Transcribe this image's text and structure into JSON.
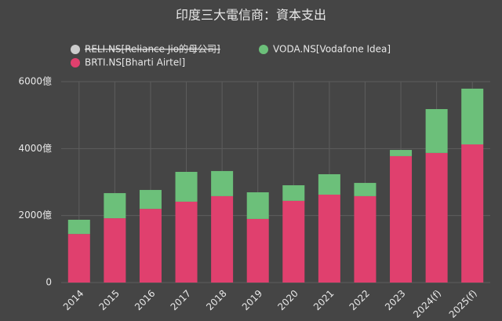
{
  "chart_data": {
    "type": "stacked_bar",
    "title": "印度三大電信商：資本支出",
    "categories": [
      "2014",
      "2015",
      "2016",
      "2017",
      "2018",
      "2019",
      "2020",
      "2021",
      "2022",
      "2023",
      "2024(f)",
      "2025(f)"
    ],
    "series": [
      {
        "name": "RELI.NS[Reliance Jio的母公司]",
        "color": "#cccccc",
        "hidden": true,
        "values": [
          null,
          null,
          null,
          null,
          null,
          null,
          null,
          null,
          null,
          null,
          null,
          null
        ]
      },
      {
        "name": "VODA.NS[Vodafone Idea]",
        "color": "#6cc07a",
        "values": [
          425,
          750,
          565,
          890,
          750,
          795,
          465,
          610,
          395,
          185,
          1310,
          1665
        ]
      },
      {
        "name": "BRTI.NS[Bharti Airtel]",
        "color": "#e0406e",
        "values": [
          1450,
          1920,
          2200,
          2415,
          2580,
          1900,
          2440,
          2625,
          2580,
          3775,
          3870,
          4125
        ]
      }
    ],
    "ylim": [
      0,
      6000
    ],
    "yticks": [
      0,
      {
        "value": 2000,
        "label": "2000億"
      },
      {
        "value": 4000,
        "label": "4000億"
      },
      {
        "value": 6000,
        "label": "6000億"
      }
    ],
    "grid": true
  }
}
